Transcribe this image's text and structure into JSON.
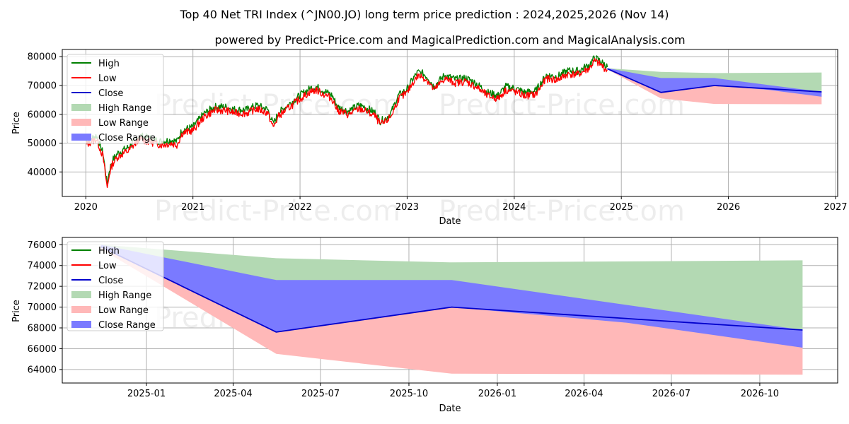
{
  "title_line1": "Top 40 Net TRI Index (^JN00.JO) long term price prediction : 2024,2025,2026 (Nov 14)",
  "title_line2": "powered by Predict-Price.com and MagicalPrediction.com and MagicalAnalysis.com",
  "watermark_text": "Predict-Price.com",
  "colors": {
    "high": "#008000",
    "low": "#ff0000",
    "close": "#0000cc",
    "high_range": "#b3d9b3",
    "low_range": "#ffb8b8",
    "close_range": "#7a7aff"
  },
  "legend": [
    "High",
    "Low",
    "Close",
    "High Range",
    "Low Range",
    "Close Range"
  ],
  "chart_data": [
    {
      "type": "line",
      "name": "long-term",
      "xlabel": "Date",
      "ylabel": "Price",
      "xlim": [
        2019.78,
        2027.02
      ],
      "ylim": [
        31500,
        82500
      ],
      "x_ticks": [
        2020,
        2021,
        2022,
        2023,
        2024,
        2025,
        2026,
        2027
      ],
      "x_tick_labels": [
        "2020",
        "2021",
        "2022",
        "2023",
        "2024",
        "2025",
        "2026",
        "2027"
      ],
      "y_ticks": [
        40000,
        50000,
        60000,
        70000,
        80000
      ],
      "y_tick_labels": [
        "40000",
        "50000",
        "60000",
        "70000",
        "80000"
      ],
      "history": {
        "x": [
          2020.0,
          2020.1,
          2020.16,
          2020.2,
          2020.22,
          2020.25,
          2020.3,
          2020.4,
          2020.5,
          2020.6,
          2020.7,
          2020.8,
          2020.85,
          2020.9,
          2021.0,
          2021.1,
          2021.2,
          2021.3,
          2021.4,
          2021.5,
          2021.6,
          2021.7,
          2021.75,
          2021.8,
          2021.9,
          2022.0,
          2022.1,
          2022.15,
          2022.2,
          2022.3,
          2022.35,
          2022.45,
          2022.55,
          2022.6,
          2022.7,
          2022.75,
          2022.8,
          2022.85,
          2022.92,
          2023.0,
          2023.05,
          2023.1,
          2023.15,
          2023.2,
          2023.25,
          2023.35,
          2023.45,
          2023.55,
          2023.65,
          2023.75,
          2023.85,
          2023.92,
          2024.0,
          2024.1,
          2024.2,
          2024.3,
          2024.4,
          2024.5,
          2024.6,
          2024.65,
          2024.7,
          2024.75,
          2024.8,
          2024.87
        ],
        "close": [
          50000,
          52000,
          46000,
          35000,
          40000,
          43500,
          46000,
          48000,
          52000,
          51000,
          50000,
          50500,
          50000,
          54000,
          55000,
          59500,
          62000,
          62000,
          61000,
          61000,
          62500,
          61000,
          56000,
          60000,
          63000,
          66000,
          68500,
          69000,
          68000,
          66000,
          62000,
          60500,
          62500,
          62000,
          60000,
          57000,
          58000,
          60000,
          66000,
          68000,
          71500,
          74000,
          73500,
          72000,
          69000,
          73000,
          71500,
          72000,
          70000,
          67000,
          66000,
          69000,
          68500,
          67000,
          67500,
          73000,
          72500,
          74500,
          74500,
          75500,
          76500,
          79000,
          78000,
          75800
        ]
      },
      "forecast": {
        "x": [
          2024.87,
          2025.37,
          2025.87,
          2026.87
        ],
        "close": [
          75800,
          67600,
          70000,
          67800
        ]
      },
      "high_range": {
        "x": [
          2024.87,
          2025.37,
          2025.87,
          2026.87
        ],
        "upper": [
          76000,
          74700,
          74300,
          74500
        ],
        "lower": [
          75800,
          67600,
          70000,
          67800
        ]
      },
      "low_range": {
        "x": [
          2024.87,
          2025.37,
          2025.87,
          2026.87
        ],
        "upper": [
          75800,
          67600,
          70000,
          67800
        ],
        "lower": [
          75600,
          65500,
          63600,
          63500
        ]
      },
      "close_range": {
        "x": [
          2024.87,
          2025.37,
          2025.87,
          2026.37,
          2026.87
        ],
        "upper": [
          76000,
          72600,
          72600,
          70200,
          67800
        ],
        "lower": [
          75800,
          67600,
          70000,
          68500,
          66100
        ]
      }
    },
    {
      "type": "line",
      "name": "prediction-zoom",
      "xlabel": "Date",
      "ylabel": "Price",
      "xlim": [
        2024.76,
        2026.97
      ],
      "ylim": [
        62700,
        76700
      ],
      "x_ticks": [
        2025.0,
        2025.247,
        2025.496,
        2025.748,
        2026.0,
        2026.247,
        2026.496,
        2026.748
      ],
      "x_tick_labels": [
        "2025-01",
        "2025-04",
        "2025-07",
        "2025-10",
        "2026-01",
        "2026-04",
        "2026-07",
        "2026-10"
      ],
      "y_ticks": [
        64000,
        66000,
        68000,
        70000,
        72000,
        74000,
        76000
      ],
      "y_tick_labels": [
        "64000",
        "66000",
        "68000",
        "70000",
        "72000",
        "74000",
        "76000"
      ],
      "forecast": {
        "x": [
          2024.87,
          2025.37,
          2025.87,
          2026.87
        ],
        "close": [
          75800,
          67600,
          70000,
          67800
        ]
      },
      "high_range": {
        "x": [
          2024.87,
          2025.37,
          2025.87,
          2026.87
        ],
        "upper": [
          76000,
          74700,
          74300,
          74500
        ],
        "lower": [
          75800,
          67600,
          70000,
          67800
        ]
      },
      "low_range": {
        "x": [
          2024.87,
          2025.37,
          2025.87,
          2026.87
        ],
        "upper": [
          75800,
          67600,
          70000,
          67800
        ],
        "lower": [
          75600,
          65500,
          63600,
          63500
        ]
      },
      "close_range": {
        "x": [
          2024.87,
          2025.37,
          2025.87,
          2026.37,
          2026.87
        ],
        "upper": [
          76000,
          72600,
          72600,
          70200,
          67800
        ],
        "lower": [
          75800,
          67600,
          70000,
          68500,
          66100
        ]
      }
    }
  ]
}
